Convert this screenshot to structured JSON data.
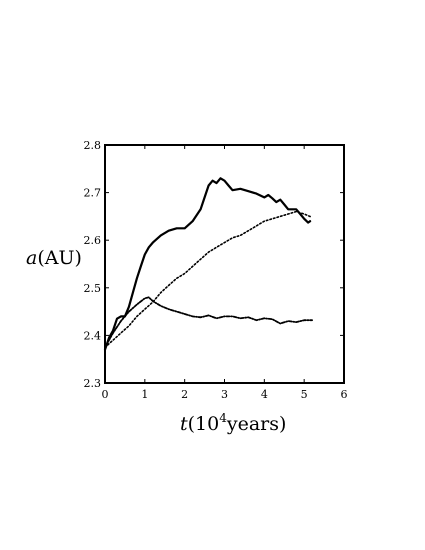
{
  "chart_data": {
    "type": "line",
    "title": "",
    "xlabel": {
      "var": "t",
      "open": "(10",
      "exp": "4",
      "rest": "years)"
    },
    "ylabel": {
      "var": "a",
      "rest": "(AU)"
    },
    "xlim": [
      0,
      6
    ],
    "ylim": [
      2.3,
      2.8
    ],
    "xticks": [
      "0",
      "1",
      "2",
      "3",
      "4",
      "5",
      "6"
    ],
    "yticks": [
      "2.3",
      "2.4",
      "2.5",
      "2.6",
      "2.7",
      "2.8"
    ],
    "grid": false,
    "legend": "none",
    "series": [
      {
        "style": "solid",
        "x": [
          0,
          0.1,
          0.2,
          0.3,
          0.4,
          0.5,
          0.6,
          0.7,
          0.8,
          0.9,
          1.0,
          1.1,
          1.2,
          1.4,
          1.6,
          1.8,
          2.0,
          2.2,
          2.4,
          2.5,
          2.6,
          2.7,
          2.8,
          2.9,
          3.0,
          3.1,
          3.2,
          3.4,
          3.6,
          3.8,
          4.0,
          4.1,
          4.2,
          4.3,
          4.4,
          4.5,
          4.6,
          4.8,
          4.9,
          5.0,
          5.1,
          5.15
        ],
        "y": [
          2.37,
          2.395,
          2.41,
          2.435,
          2.44,
          2.44,
          2.46,
          2.49,
          2.52,
          2.545,
          2.57,
          2.585,
          2.595,
          2.61,
          2.62,
          2.625,
          2.625,
          2.64,
          2.665,
          2.69,
          2.715,
          2.725,
          2.72,
          2.73,
          2.725,
          2.715,
          2.705,
          2.708,
          2.703,
          2.698,
          2.69,
          2.695,
          2.688,
          2.68,
          2.685,
          2.675,
          2.665,
          2.665,
          2.655,
          2.645,
          2.637,
          2.64
        ]
      },
      {
        "style": "dotted",
        "x": [
          0,
          0.2,
          0.4,
          0.6,
          0.8,
          1.0,
          1.2,
          1.4,
          1.6,
          1.8,
          2.0,
          2.2,
          2.4,
          2.6,
          2.8,
          3.0,
          3.2,
          3.4,
          3.6,
          3.8,
          4.0,
          4.2,
          4.4,
          4.6,
          4.8,
          5.0,
          5.2
        ],
        "y": [
          2.375,
          2.39,
          2.405,
          2.42,
          2.44,
          2.455,
          2.47,
          2.49,
          2.505,
          2.52,
          2.53,
          2.545,
          2.56,
          2.575,
          2.585,
          2.595,
          2.605,
          2.61,
          2.62,
          2.63,
          2.64,
          2.645,
          2.65,
          2.655,
          2.66,
          2.655,
          2.648
        ]
      },
      {
        "style": "dashdot",
        "x": [
          0,
          0.2,
          0.4,
          0.6,
          0.8,
          1.0,
          1.1,
          1.2,
          1.4,
          1.6,
          1.8,
          2.0,
          2.2,
          2.4,
          2.6,
          2.8,
          3.0,
          3.2,
          3.4,
          3.6,
          3.8,
          4.0,
          4.2,
          4.4,
          4.6,
          4.8,
          5.0,
          5.2
        ],
        "y": [
          2.375,
          2.405,
          2.43,
          2.45,
          2.465,
          2.478,
          2.48,
          2.472,
          2.462,
          2.455,
          2.45,
          2.445,
          2.44,
          2.438,
          2.442,
          2.436,
          2.44,
          2.44,
          2.436,
          2.438,
          2.432,
          2.436,
          2.434,
          2.425,
          2.43,
          2.428,
          2.432,
          2.432
        ]
      }
    ]
  }
}
